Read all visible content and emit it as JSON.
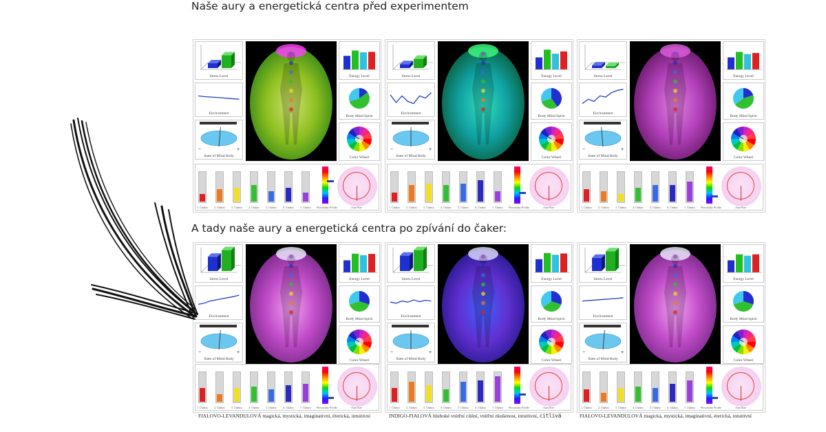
{
  "headings": {
    "before": "Naše aury a energetická centra před experimentem",
    "after": "A tady naše aury a energetická centra po zpívání do čaker:"
  },
  "labels": {
    "stress": "Stress Level",
    "energy": "Energy Level",
    "environment": "Environment",
    "body_mind_spirit": "Body Mind Spirit",
    "state": "State of Mind Body",
    "color_wheel": "Color Wheel",
    "personality": "Personality Profile",
    "aura_size": "Aura Size",
    "chakras": [
      "1. Chakra",
      "2. Chakra",
      "3. Chakra",
      "4. Chakra",
      "5. Chakra",
      "6. Chakra",
      "7. Chakra"
    ]
  },
  "captions": [
    {
      "main": "FIALOVO-LEVANDULOVÁ magická, mystická, imaginativní, éterická, intuitivní",
      "extra": ""
    },
    {
      "main": "INDIGO-FIALOVÁ hluboké vnitřní cítění, vnitřní zkušenost, intuitivní,",
      "extra": "citlivá"
    },
    {
      "main": "FIALOVO-LEVANDULOVÁ magická, mystická, imaginativní, éterická, intuitivní",
      "extra": ""
    }
  ],
  "colors": {
    "chakras": [
      "#e02020",
      "#ee7a20",
      "#f2e020",
      "#30c030",
      "#3a6ae0",
      "#2a2ac0",
      "#9a40d8"
    ],
    "energy_bars": [
      "#2030d0",
      "#20c020",
      "#30c0e0",
      "#e02020"
    ],
    "environment_line": "#2040c0"
  },
  "panels": [
    {
      "aura": {
        "edge": "#3a8a18",
        "mid": "#8ec020",
        "core": "#cfe070",
        "top": "#ff40ff"
      },
      "stress": [
        0.22,
        0.58
      ],
      "energy": [
        0.62,
        0.86,
        0.78,
        0.8
      ],
      "env": [
        0.55,
        0.52,
        0.5,
        0.48,
        0.46,
        0.44,
        0.42,
        0.4
      ],
      "state": 0.55,
      "bms": [
        0.15,
        0.55,
        0.3
      ],
      "chakra": [
        0.25,
        0.4,
        0.45,
        0.55,
        0.35,
        0.45,
        0.3
      ],
      "ramp": 0.38
    },
    {
      "aura": {
        "edge": "#0a6040",
        "mid": "#10a0a0",
        "core": "#30e0c0",
        "top": "#40ff80"
      },
      "stress": [
        0.18,
        0.42
      ],
      "energy": [
        0.55,
        0.9,
        0.72,
        0.82
      ],
      "env": [
        0.6,
        0.25,
        0.55,
        0.3,
        0.2,
        0.55,
        0.45,
        0.7
      ],
      "state": 0.5,
      "bms": [
        0.4,
        0.3,
        0.3
      ],
      "chakra": [
        0.3,
        0.55,
        0.6,
        0.55,
        0.6,
        0.7,
        0.35
      ],
      "ramp": 0.72
    },
    {
      "aura": {
        "edge": "#6a1a6a",
        "mid": "#b040b8",
        "core": "#e080e0",
        "top": "#e060e0"
      },
      "stress": [
        0.12,
        0.1
      ],
      "energy": [
        0.55,
        0.8,
        0.7,
        0.75
      ],
      "env": [
        0.2,
        0.4,
        0.3,
        0.55,
        0.5,
        0.7,
        0.8,
        0.85
      ],
      "state": 0.45,
      "bms": [
        0.2,
        0.45,
        0.35
      ],
      "chakra": [
        0.4,
        0.35,
        0.25,
        0.45,
        0.55,
        0.55,
        0.65
      ],
      "ramp": 0.8
    },
    {
      "aura": {
        "edge": "#7a2a8a",
        "mid": "#c04cc8",
        "core": "#f0a0f0",
        "top": "#f0f0ff"
      },
      "stress": [
        0.65,
        0.95
      ],
      "energy": [
        0.55,
        0.85,
        0.78,
        0.84
      ],
      "env": [
        0.3,
        0.35,
        0.45,
        0.5,
        0.55,
        0.6,
        0.65,
        0.72
      ],
      "state": 0.55,
      "bms": [
        0.3,
        0.4,
        0.3
      ],
      "chakra": [
        0.45,
        0.25,
        0.45,
        0.5,
        0.4,
        0.55,
        0.6
      ],
      "ramp": 0.85
    },
    {
      "aura": {
        "edge": "#2a1a90",
        "mid": "#6030d0",
        "core": "#4060ff",
        "top": "#e0e0ff"
      },
      "stress": [
        0.7,
        0.95
      ],
      "energy": [
        0.6,
        0.88,
        0.8,
        0.86
      ],
      "env": [
        0.4,
        0.35,
        0.45,
        0.4,
        0.5,
        0.42,
        0.48,
        0.45
      ],
      "state": 0.5,
      "bms": [
        0.3,
        0.35,
        0.35
      ],
      "chakra": [
        0.45,
        0.65,
        0.55,
        0.4,
        0.65,
        0.7,
        0.85
      ],
      "ramp": 0.75
    },
    {
      "aura": {
        "edge": "#7a2a8a",
        "mid": "#c04cc8",
        "core": "#f0a0f0",
        "top": "#f0f0ff"
      },
      "stress": [
        0.6,
        0.9
      ],
      "energy": [
        0.55,
        0.82,
        0.76,
        0.82
      ],
      "env": [
        0.45,
        0.47,
        0.49,
        0.51,
        0.53,
        0.55,
        0.57,
        0.6
      ],
      "state": 0.55,
      "bms": [
        0.3,
        0.4,
        0.3
      ],
      "chakra": [
        0.4,
        0.3,
        0.45,
        0.5,
        0.45,
        0.6,
        0.7
      ],
      "ramp": 0.85
    }
  ]
}
